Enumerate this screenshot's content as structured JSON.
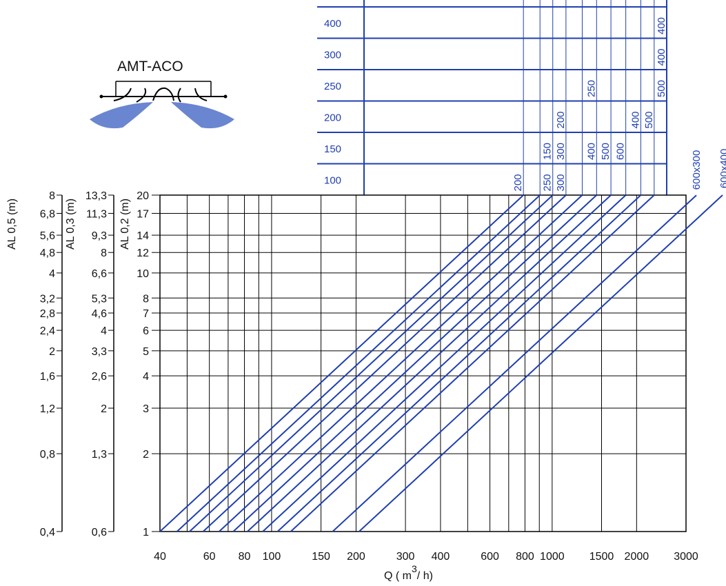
{
  "colors": {
    "line": "#1f3fb0",
    "grid": "#000000",
    "text_blue": "#1f3fb0",
    "airflow": "#5a78c8"
  },
  "logo": {
    "title": "AMT-ACO"
  },
  "chart_data": {
    "type": "line",
    "scale": "log-log",
    "grid": true,
    "xlabel": "Q ( m³/ h)",
    "xlabel_main": "Q ( m",
    "xlabel_sup": "3",
    "xlabel_tail": "/ h)",
    "xlim": [
      40,
      3000
    ],
    "ylim": [
      1,
      20
    ],
    "x_ticks": [
      {
        "v": 40,
        "label": "40"
      },
      {
        "v": 60,
        "label": "60"
      },
      {
        "v": 80,
        "label": "80"
      },
      {
        "v": 100,
        "label": "100"
      },
      {
        "v": 150,
        "label": "150"
      },
      {
        "v": 200,
        "label": "200"
      },
      {
        "v": 300,
        "label": "300"
      },
      {
        "v": 400,
        "label": "400"
      },
      {
        "v": 600,
        "label": "600"
      },
      {
        "v": 800,
        "label": "800"
      },
      {
        "v": 1000,
        "label": "1000"
      },
      {
        "v": 1500,
        "label": "1500"
      },
      {
        "v": 2000,
        "label": "2000"
      },
      {
        "v": 3000,
        "label": "3000"
      }
    ],
    "x_minor": [
      50,
      70,
      90,
      500,
      700,
      900
    ],
    "axes": [
      {
        "label": "AL 0,2 (m)",
        "ticks": [
          {
            "v": 1,
            "label": "1"
          },
          {
            "v": 2,
            "label": "2"
          },
          {
            "v": 3,
            "label": "3"
          },
          {
            "v": 4,
            "label": "4"
          },
          {
            "v": 5,
            "label": "5"
          },
          {
            "v": 6,
            "label": "6"
          },
          {
            "v": 7,
            "label": "7"
          },
          {
            "v": 8,
            "label": "8"
          },
          {
            "v": 10,
            "label": "10"
          },
          {
            "v": 12,
            "label": "12"
          },
          {
            "v": 14,
            "label": "14"
          },
          {
            "v": 17,
            "label": "17"
          },
          {
            "v": 20,
            "label": "20"
          }
        ]
      },
      {
        "label": "AL 0,3 (m)",
        "ticks": [
          {
            "v": 1,
            "label": "0,6"
          },
          {
            "v": 2,
            "label": "1,3"
          },
          {
            "v": 3,
            "label": "2"
          },
          {
            "v": 4,
            "label": "2,6"
          },
          {
            "v": 5,
            "label": "3,3"
          },
          {
            "v": 6,
            "label": "4"
          },
          {
            "v": 7,
            "label": "4,6"
          },
          {
            "v": 8,
            "label": "5,3"
          },
          {
            "v": 10,
            "label": "6,6"
          },
          {
            "v": 12,
            "label": "8"
          },
          {
            "v": 14,
            "label": "9,3"
          },
          {
            "v": 17,
            "label": "11,3"
          },
          {
            "v": 20,
            "label": "13,3"
          }
        ]
      },
      {
        "label": "AL 0,5 (m)",
        "ticks": [
          {
            "v": 1,
            "label": "0,4"
          },
          {
            "v": 2,
            "label": "0,8"
          },
          {
            "v": 3,
            "label": "1,2"
          },
          {
            "v": 4,
            "label": "1,6"
          },
          {
            "v": 5,
            "label": "2"
          },
          {
            "v": 6,
            "label": "2,4"
          },
          {
            "v": 7,
            "label": "2,8"
          },
          {
            "v": 8,
            "label": "3,2"
          },
          {
            "v": 10,
            "label": "4"
          },
          {
            "v": 12,
            "label": "4,8"
          },
          {
            "v": 14,
            "label": "5,6"
          },
          {
            "v": 17,
            "label": "6,8"
          },
          {
            "v": 20,
            "label": "8"
          }
        ]
      }
    ],
    "series": [
      {
        "x_at_y1": 40,
        "x_at_y20": 790
      },
      {
        "x_at_y1": 46,
        "x_at_y20": 905
      },
      {
        "x_at_y1": 51,
        "x_at_y20": 1005
      },
      {
        "x_at_y1": 57,
        "x_at_y20": 1120
      },
      {
        "x_at_y1": 65,
        "x_at_y20": 1280
      },
      {
        "x_at_y1": 73,
        "x_at_y20": 1440
      },
      {
        "x_at_y1": 82,
        "x_at_y20": 1620
      },
      {
        "x_at_y1": 93,
        "x_at_y20": 1830
      },
      {
        "x_at_y1": 105,
        "x_at_y20": 2070
      },
      {
        "x_at_y1": 117,
        "x_at_y20": 2310
      },
      {
        "x_at_y1": 165,
        "x_at_y20": 3270
      },
      {
        "x_at_y1": 205,
        "x_at_y20": 4050
      }
    ],
    "size_table": {
      "rows": [
        "400",
        "300",
        "250",
        "200",
        "150",
        "100"
      ],
      "cells": [
        {
          "row": "400",
          "label": "400",
          "series": 11
        },
        {
          "row": "300",
          "label": "400",
          "series": 10
        },
        {
          "row": "250",
          "label": "250",
          "series": 5
        },
        {
          "row": "250",
          "label": "500",
          "series": 11
        },
        {
          "row": "200",
          "label": "200",
          "series": 3
        },
        {
          "row": "200",
          "label": "400",
          "series": 8
        },
        {
          "row": "200",
          "label": "500",
          "series": 9
        },
        {
          "row": "150",
          "label": "150",
          "series": 2
        },
        {
          "row": "150",
          "label": "300",
          "series": 3
        },
        {
          "row": "150",
          "label": "400",
          "series": 5
        },
        {
          "row": "150",
          "label": "500",
          "series": 6
        },
        {
          "row": "150",
          "label": "600",
          "series": 7
        },
        {
          "row": "100",
          "label": "200",
          "series": 0
        },
        {
          "row": "100",
          "label": "250",
          "series": 2
        },
        {
          "row": "100",
          "label": "300",
          "series": 3
        }
      ],
      "extra_labels": [
        {
          "label": "600x300",
          "series": 10
        },
        {
          "label": "600x400",
          "series": 11
        }
      ]
    }
  }
}
